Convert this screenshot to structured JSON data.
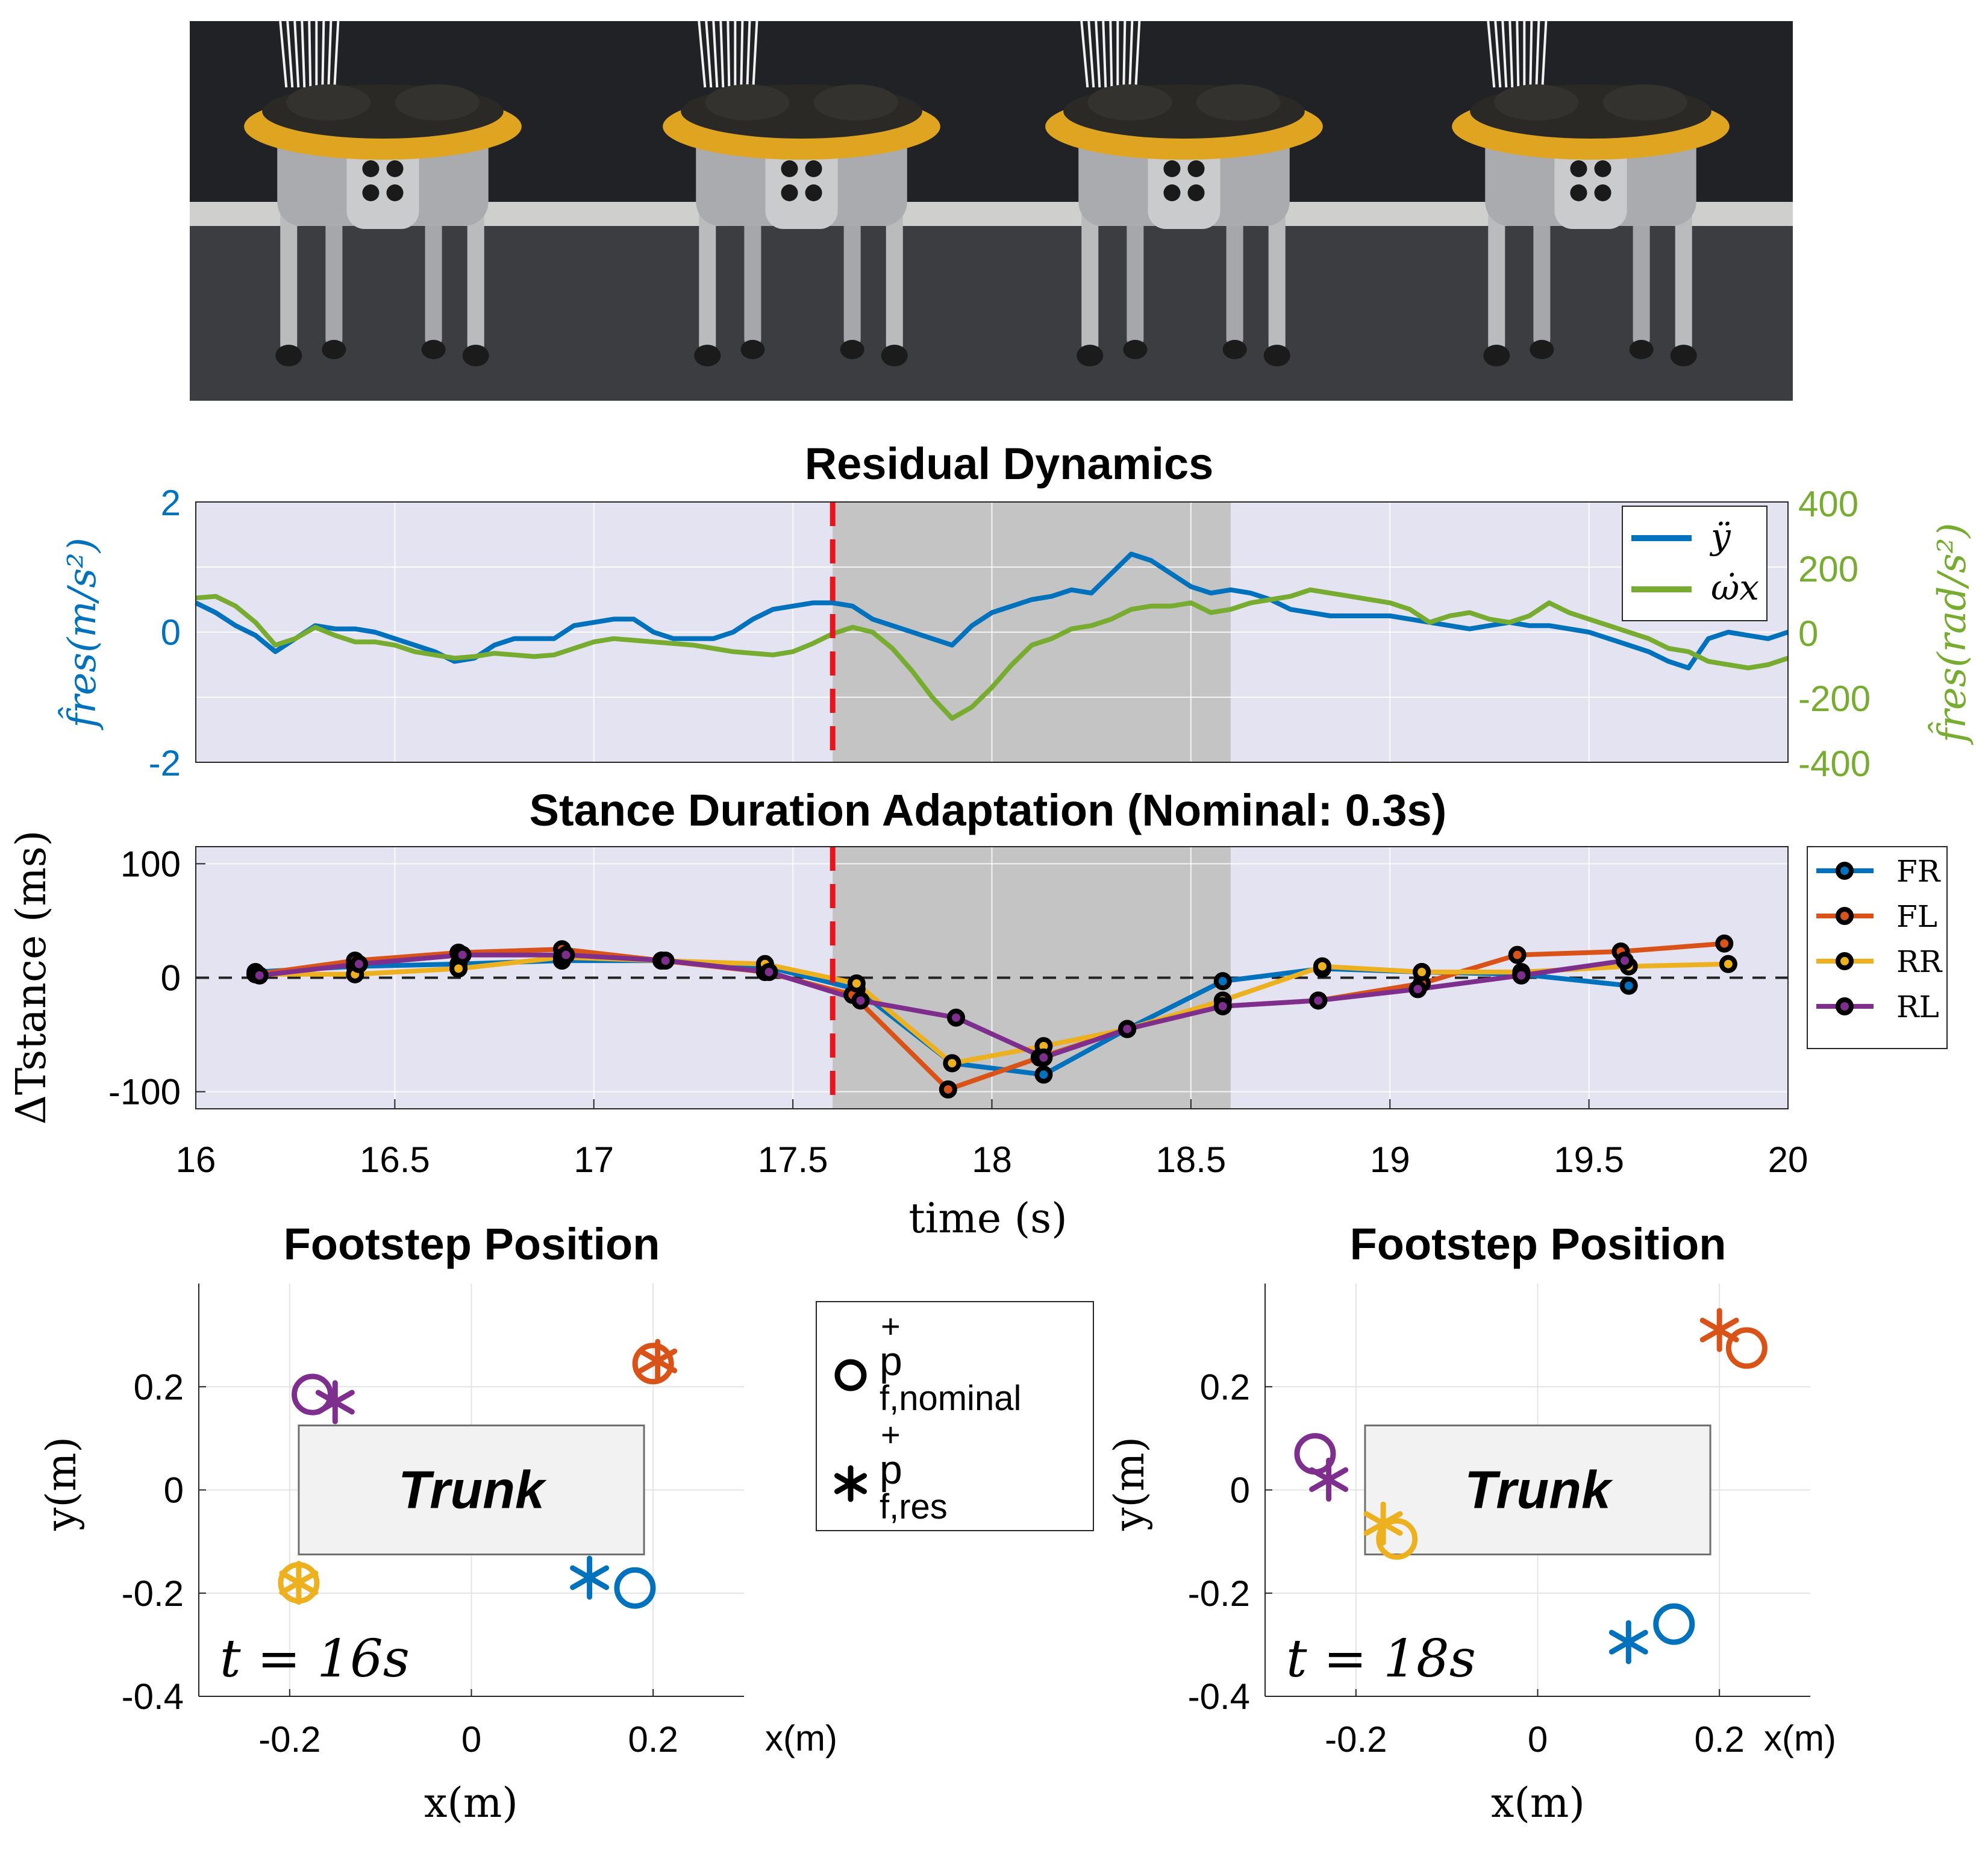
{
  "photo_strip": {
    "frames": 4,
    "subject": "quadruped-robot-with-payload"
  },
  "colors": {
    "blue": "#0072BD",
    "orange": "#D95319",
    "yellow": "#EDB120",
    "purple": "#7E2F8E",
    "green": "#77AC30",
    "red_dashed": "#E8141E",
    "axes_bg": "#E3E3F1",
    "shade": "#C4C4C4"
  },
  "chart_data": [
    {
      "type": "line",
      "title": "Residual Dynamics",
      "ylabel_left": "f̂res(m/s²)",
      "ylabel_right": "f̂res(rad/s²)",
      "ylim_left": [
        -2,
        2
      ],
      "ylim_right": [
        -400,
        400
      ],
      "xlim": [
        16,
        20
      ],
      "yticks_left": [
        "2",
        "0",
        "-2"
      ],
      "yticks_right": [
        "400",
        "200",
        "0",
        "-200",
        "-400"
      ],
      "shaded_x": [
        17.6,
        18.6
      ],
      "event_x": 17.6,
      "legend_position": "top-right",
      "series": [
        {
          "name": "ÿ",
          "axis": "left",
          "color": "#0072BD",
          "x": [
            16.0,
            16.05,
            16.1,
            16.15,
            16.2,
            16.25,
            16.3,
            16.35,
            16.4,
            16.45,
            16.5,
            16.55,
            16.6,
            16.65,
            16.7,
            16.75,
            16.8,
            16.85,
            16.9,
            16.95,
            17.0,
            17.05,
            17.1,
            17.15,
            17.2,
            17.25,
            17.3,
            17.35,
            17.4,
            17.45,
            17.5,
            17.55,
            17.6,
            17.65,
            17.7,
            17.75,
            17.8,
            17.85,
            17.9,
            17.95,
            18.0,
            18.05,
            18.1,
            18.15,
            18.2,
            18.25,
            18.3,
            18.35,
            18.4,
            18.45,
            18.5,
            18.55,
            18.6,
            18.65,
            18.7,
            18.75,
            18.8,
            18.85,
            18.9,
            18.95,
            19.0,
            19.05,
            19.1,
            19.15,
            19.2,
            19.25,
            19.3,
            19.35,
            19.4,
            19.45,
            19.5,
            19.55,
            19.6,
            19.65,
            19.7,
            19.75,
            19.8,
            19.85,
            19.9,
            19.95,
            20.0
          ],
          "y": [
            0.45,
            0.3,
            0.1,
            -0.05,
            -0.3,
            -0.1,
            0.1,
            0.05,
            0.05,
            0.0,
            -0.1,
            -0.2,
            -0.3,
            -0.45,
            -0.4,
            -0.2,
            -0.1,
            -0.1,
            -0.1,
            0.1,
            0.15,
            0.2,
            0.2,
            0.0,
            -0.1,
            -0.1,
            -0.1,
            0.0,
            0.2,
            0.35,
            0.4,
            0.45,
            0.45,
            0.4,
            0.2,
            0.1,
            0.0,
            -0.1,
            -0.2,
            0.1,
            0.3,
            0.4,
            0.5,
            0.55,
            0.65,
            0.6,
            0.9,
            1.2,
            1.1,
            0.9,
            0.7,
            0.6,
            0.65,
            0.6,
            0.5,
            0.35,
            0.3,
            0.25,
            0.25,
            0.25,
            0.25,
            0.2,
            0.15,
            0.1,
            0.05,
            0.1,
            0.15,
            0.1,
            0.1,
            0.05,
            0.0,
            -0.1,
            -0.2,
            -0.3,
            -0.45,
            -0.55,
            -0.1,
            0.0,
            -0.05,
            -0.1,
            0.0
          ]
        },
        {
          "name": "ω̇x",
          "axis": "right",
          "color": "#77AC30",
          "x": [
            16.0,
            16.05,
            16.1,
            16.15,
            16.2,
            16.25,
            16.3,
            16.35,
            16.4,
            16.45,
            16.5,
            16.55,
            16.6,
            16.65,
            16.7,
            16.75,
            16.8,
            16.85,
            16.9,
            16.95,
            17.0,
            17.05,
            17.1,
            17.15,
            17.2,
            17.25,
            17.3,
            17.35,
            17.4,
            17.45,
            17.5,
            17.55,
            17.6,
            17.65,
            17.7,
            17.75,
            17.8,
            17.85,
            17.9,
            17.95,
            18.0,
            18.05,
            18.1,
            18.15,
            18.2,
            18.25,
            18.3,
            18.35,
            18.4,
            18.45,
            18.5,
            18.55,
            18.6,
            18.65,
            18.7,
            18.75,
            18.8,
            18.85,
            18.9,
            18.95,
            19.0,
            19.05,
            19.1,
            19.15,
            19.2,
            19.25,
            19.3,
            19.35,
            19.4,
            19.45,
            19.5,
            19.55,
            19.6,
            19.65,
            19.7,
            19.75,
            19.8,
            19.85,
            19.9,
            19.95,
            20.0
          ],
          "y": [
            105,
            110,
            80,
            30,
            -40,
            -20,
            15,
            -10,
            -30,
            -30,
            -40,
            -60,
            -70,
            -80,
            -75,
            -65,
            -70,
            -75,
            -70,
            -50,
            -30,
            -20,
            -25,
            -30,
            -35,
            -40,
            -50,
            -60,
            -65,
            -70,
            -60,
            -35,
            -5,
            15,
            0,
            -50,
            -120,
            -200,
            -265,
            -230,
            -170,
            -100,
            -40,
            -20,
            10,
            20,
            40,
            70,
            80,
            80,
            90,
            60,
            70,
            90,
            100,
            110,
            130,
            120,
            110,
            100,
            90,
            70,
            30,
            50,
            60,
            40,
            30,
            50,
            90,
            60,
            40,
            20,
            0,
            -20,
            -50,
            -60,
            -90,
            -100,
            -110,
            -100,
            -80
          ]
        }
      ]
    },
    {
      "type": "line",
      "title": "Stance Duration Adaptation (Nominal: 0.3s)",
      "ylabel": "ΔTstance (ms)",
      "xlabel": "time (s)",
      "xlim": [
        16,
        20
      ],
      "ylim": [
        -115,
        115
      ],
      "xticks": [
        "16",
        "16.5",
        "17",
        "17.5",
        "18",
        "18.5",
        "19",
        "19.5",
        "20"
      ],
      "yticks": [
        "100",
        "0",
        "-100"
      ],
      "shaded_x": [
        17.6,
        18.6
      ],
      "event_x": 17.6,
      "legend_position": "outside-right",
      "series": [
        {
          "name": "FR",
          "color": "#0072BD",
          "x": [
            16.15,
            16.4,
            16.66,
            16.92,
            17.17,
            17.43,
            17.66,
            17.9,
            18.13,
            18.34,
            18.58,
            18.83,
            19.08,
            19.33,
            19.6
          ],
          "y": [
            5,
            10,
            12,
            15,
            15,
            10,
            -10,
            -75,
            -85,
            -45,
            -3,
            8,
            5,
            3,
            -7
          ]
        },
        {
          "name": "FL",
          "color": "#D95319",
          "x": [
            16.15,
            16.4,
            16.66,
            16.92,
            17.17,
            17.43,
            17.65,
            17.89,
            18.12,
            18.34,
            18.58,
            18.82,
            19.08,
            19.32,
            19.58,
            19.84
          ],
          "y": [
            3,
            15,
            22,
            25,
            15,
            5,
            -15,
            -98,
            -70,
            -45,
            -25,
            -20,
            -5,
            20,
            23,
            30
          ]
        },
        {
          "name": "RR",
          "color": "#EDB120",
          "x": [
            16.15,
            16.4,
            16.66,
            16.92,
            17.17,
            17.43,
            17.66,
            17.9,
            18.13,
            18.34,
            18.58,
            18.83,
            19.08,
            19.33,
            19.6,
            19.85
          ],
          "y": [
            3,
            3,
            8,
            18,
            15,
            12,
            -5,
            -75,
            -60,
            -45,
            -20,
            10,
            5,
            5,
            10,
            12
          ]
        },
        {
          "name": "RL",
          "color": "#7E2F8E",
          "x": [
            16.16,
            16.41,
            16.67,
            16.93,
            17.18,
            17.44,
            17.67,
            17.91,
            18.13,
            18.34,
            18.58,
            18.82,
            19.07,
            19.33,
            19.59
          ],
          "y": [
            2,
            12,
            20,
            20,
            15,
            5,
            -20,
            -35,
            -70,
            -45,
            -25,
            -20,
            -10,
            2,
            15
          ]
        }
      ]
    },
    {
      "type": "scatter",
      "title": "Footstep Position",
      "annotation": "t = 16s",
      "box_label": "Trunk",
      "xlabel": "x(m)",
      "ylabel": "y(m)",
      "xlim": [
        -0.3,
        0.3
      ],
      "ylim": [
        -0.4,
        0.4
      ],
      "xticks": [
        "-0.2",
        "0",
        "0.2"
      ],
      "yticks": [
        "0.2",
        "0",
        "-0.2",
        "-0.4"
      ],
      "trunk": {
        "x": [
          -0.19,
          0.19
        ],
        "y": [
          -0.125,
          0.125
        ]
      },
      "series": [
        {
          "leg": "FR",
          "color": "#0072BD",
          "nominal": [
            0.18,
            -0.19
          ],
          "res": [
            0.13,
            -0.17
          ]
        },
        {
          "leg": "FL",
          "color": "#D95319",
          "nominal": [
            0.2,
            0.245
          ],
          "res": [
            0.205,
            0.25
          ]
        },
        {
          "leg": "RR",
          "color": "#EDB120",
          "nominal": [
            -0.19,
            -0.18
          ],
          "res": [
            -0.19,
            -0.18
          ]
        },
        {
          "leg": "RL",
          "color": "#7E2F8E",
          "nominal": [
            -0.175,
            0.185
          ],
          "res": [
            -0.15,
            0.17
          ]
        }
      ]
    },
    {
      "type": "scatter",
      "title": "Footstep Position",
      "annotation": "t = 18s",
      "box_label": "Trunk",
      "xlabel": "x(m)",
      "ylabel": "y(m)",
      "xlim": [
        -0.3,
        0.3
      ],
      "ylim": [
        -0.4,
        0.4
      ],
      "xticks": [
        "-0.2",
        "0",
        "0.2"
      ],
      "yticks": [
        "0.2",
        "0",
        "-0.2",
        "-0.4"
      ],
      "trunk": {
        "x": [
          -0.19,
          0.19
        ],
        "y": [
          -0.125,
          0.125
        ]
      },
      "series": [
        {
          "leg": "FR",
          "color": "#0072BD",
          "nominal": [
            0.15,
            -0.26
          ],
          "res": [
            0.1,
            -0.295
          ]
        },
        {
          "leg": "FL",
          "color": "#D95319",
          "nominal": [
            0.23,
            0.275
          ],
          "res": [
            0.2,
            0.31
          ]
        },
        {
          "leg": "RR",
          "color": "#EDB120",
          "nominal": [
            -0.155,
            -0.095
          ],
          "res": [
            -0.17,
            -0.065
          ]
        },
        {
          "leg": "RL",
          "color": "#7E2F8E",
          "nominal": [
            -0.245,
            0.07
          ],
          "res": [
            -0.23,
            0.02
          ]
        }
      ]
    }
  ],
  "marker_legend": {
    "nominal": {
      "base": "p",
      "sup": "+",
      "sub": "f,nominal"
    },
    "res": {
      "base": "p",
      "sup": "+",
      "sub": "f,res"
    }
  },
  "floating_labels": {
    "left_xm": "x(m)",
    "right_xm": "x(m)"
  }
}
